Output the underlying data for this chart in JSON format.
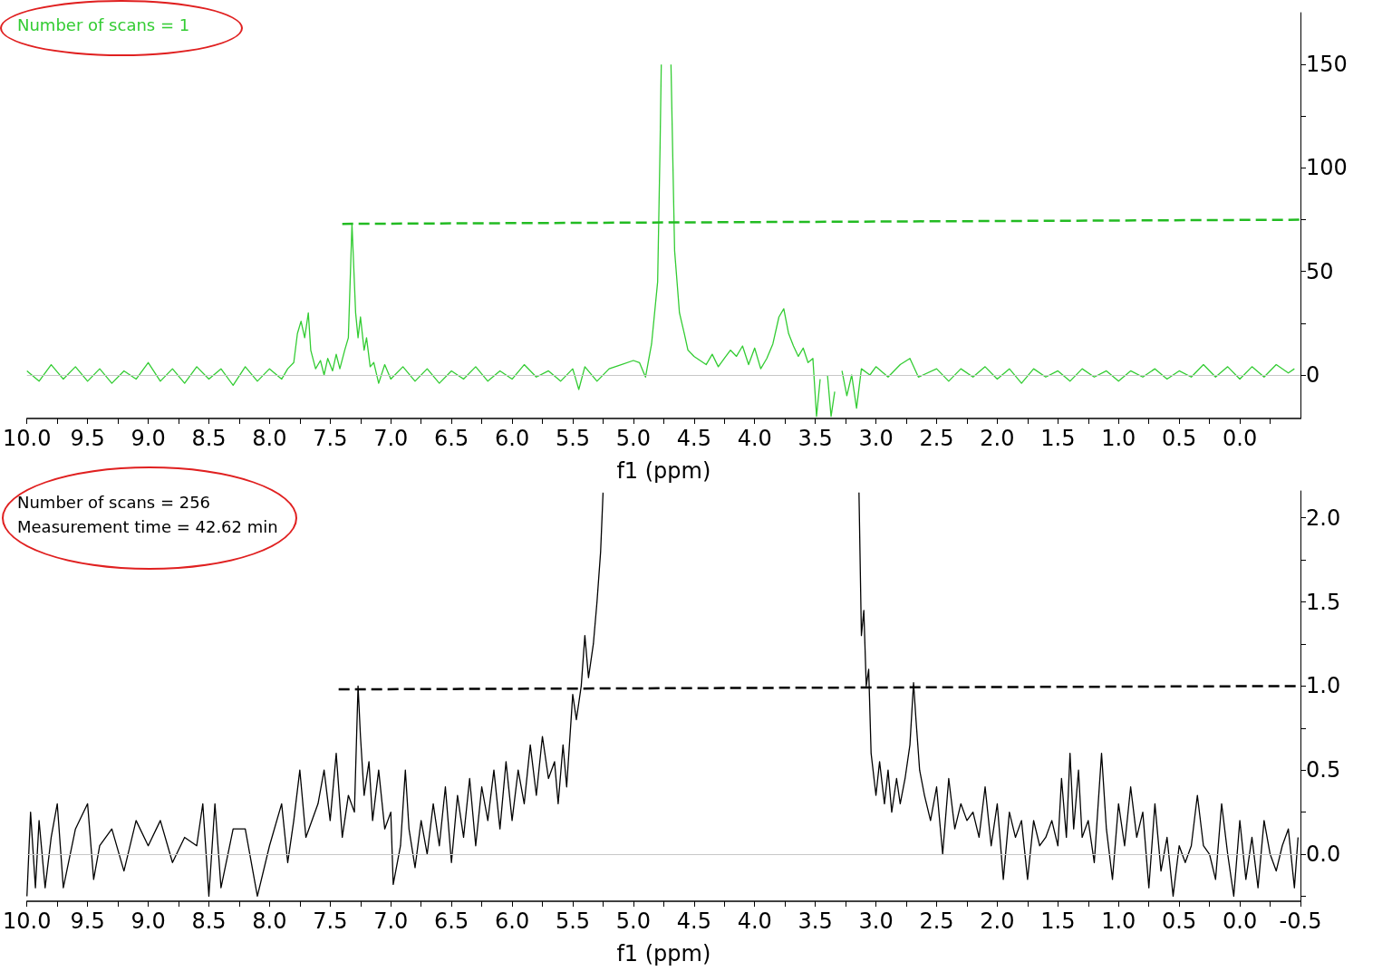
{
  "chart_data": [
    {
      "type": "line",
      "xlabel": "f1 (ppm)",
      "annotations": [
        "Number of scans = 1"
      ],
      "xlim": [
        10.0,
        -0.5
      ],
      "xticks": [
        {
          "value": 10,
          "label": "10.0"
        },
        {
          "value": 9.75,
          "label": null
        },
        {
          "value": 9.5,
          "label": "9.5"
        },
        {
          "value": 9.25,
          "label": null
        },
        {
          "value": 9,
          "label": "9.0"
        },
        {
          "value": 8.75,
          "label": null
        },
        {
          "value": 8.5,
          "label": "8.5"
        },
        {
          "value": 8.25,
          "label": null
        },
        {
          "value": 8,
          "label": "8.0"
        },
        {
          "value": 7.75,
          "label": null
        },
        {
          "value": 7.5,
          "label": "7.5"
        },
        {
          "value": 7.25,
          "label": null
        },
        {
          "value": 7,
          "label": "7.0"
        },
        {
          "value": 6.75,
          "label": null
        },
        {
          "value": 6.5,
          "label": "6.5"
        },
        {
          "value": 6.25,
          "label": null
        },
        {
          "value": 6,
          "label": "6.0"
        },
        {
          "value": 5.75,
          "label": null
        },
        {
          "value": 5.5,
          "label": "5.5"
        },
        {
          "value": 5.25,
          "label": null
        },
        {
          "value": 5,
          "label": "5.0"
        },
        {
          "value": 4.75,
          "label": null
        },
        {
          "value": 4.5,
          "label": "4.5"
        },
        {
          "value": 4.25,
          "label": null
        },
        {
          "value": 4,
          "label": "4.0"
        },
        {
          "value": 3.75,
          "label": null
        },
        {
          "value": 3.5,
          "label": "3.5"
        },
        {
          "value": 3.25,
          "label": null
        },
        {
          "value": 3,
          "label": "3.0"
        },
        {
          "value": 2.75,
          "label": null
        },
        {
          "value": 2.5,
          "label": "2.5"
        },
        {
          "value": 2.25,
          "label": null
        },
        {
          "value": 2,
          "label": "2.0"
        },
        {
          "value": 1.75,
          "label": null
        },
        {
          "value": 1.5,
          "label": "1.5"
        },
        {
          "value": 1.25,
          "label": null
        },
        {
          "value": 1,
          "label": "1.0"
        },
        {
          "value": 0.75,
          "label": null
        },
        {
          "value": 0.5,
          "label": "0.5"
        },
        {
          "value": 0.25,
          "label": null
        },
        {
          "value": 0,
          "label": "0.0"
        },
        {
          "value": -0.25,
          "label": null
        }
      ],
      "ylim": [
        -21,
        175
      ],
      "yticks": [
        0,
        {
          "value": 25,
          "label": null
        },
        50,
        {
          "value": 75,
          "label": null
        },
        100,
        {
          "value": 125,
          "label": null
        },
        150
      ],
      "ref_lines": [
        {
          "axis": "y",
          "value": 0,
          "color": "#c8c8c8"
        }
      ],
      "series": [
        {
          "color": "#33cc33",
          "x": [
            10.0,
            9.9,
            9.8,
            9.7,
            9.6,
            9.5,
            9.4,
            9.3,
            9.2,
            9.1,
            9.0,
            8.9,
            8.8,
            8.7,
            8.6,
            8.5,
            8.4,
            8.3,
            8.2,
            8.1,
            8.0,
            7.9,
            7.85,
            7.8,
            7.77,
            7.74,
            7.71,
            7.68,
            7.66,
            7.62,
            7.58,
            7.55,
            7.52,
            7.48,
            7.45,
            7.42,
            7.38,
            7.35,
            7.32,
            7.29,
            7.27,
            7.25,
            7.22,
            7.2,
            7.17,
            7.14,
            7.1,
            7.05,
            7.0,
            6.9,
            6.8,
            6.7,
            6.6,
            6.5,
            6.4,
            6.3,
            6.2,
            6.1,
            6.0,
            5.9,
            5.8,
            5.7,
            5.6,
            5.5,
            5.45,
            5.4,
            5.3,
            5.2,
            5.1,
            5.0,
            4.95,
            4.9,
            4.85,
            4.8,
            4.78,
            4.77,
            4.73,
            4.69,
            4.66,
            4.62,
            4.58,
            4.55,
            4.5,
            4.45,
            4.4,
            4.35,
            4.3,
            4.25,
            4.2,
            4.15,
            4.1,
            4.05,
            4.0,
            3.95,
            3.9,
            3.85,
            3.8,
            3.76,
            3.72,
            3.68,
            3.64,
            3.6,
            3.56,
            3.52,
            3.49,
            3.46,
            3.43,
            3.4,
            3.37,
            3.34,
            3.31,
            3.28,
            3.24,
            3.2,
            3.16,
            3.12,
            3.05,
            3.0,
            2.9,
            2.8,
            2.72,
            2.65,
            2.5,
            2.4,
            2.3,
            2.2,
            2.1,
            2.0,
            1.9,
            1.8,
            1.7,
            1.6,
            1.5,
            1.4,
            1.3,
            1.2,
            1.1,
            1.0,
            0.9,
            0.8,
            0.7,
            0.6,
            0.5,
            0.4,
            0.3,
            0.2,
            0.1,
            0.0,
            -0.1,
            -0.2,
            -0.3,
            -0.4,
            -0.45
          ],
          "values": [
            2,
            -3,
            5,
            -2,
            4,
            -3,
            3,
            -4,
            2,
            -2,
            6,
            -3,
            3,
            -4,
            4,
            -2,
            3,
            -5,
            4,
            -3,
            3,
            -2,
            3,
            6,
            20,
            26,
            18,
            30,
            12,
            3,
            7,
            0,
            8,
            2,
            10,
            3,
            12,
            18,
            73,
            30,
            18,
            28,
            12,
            18,
            4,
            6,
            -4,
            5,
            -2,
            4,
            -3,
            3,
            -4,
            2,
            -2,
            4,
            -3,
            2,
            -2,
            5,
            -1,
            2,
            -3,
            3,
            -7,
            4,
            -3,
            3,
            5,
            7,
            6,
            -1,
            15,
            45,
            110,
            150,
            null,
            150,
            60,
            30,
            20,
            12,
            9,
            7,
            5,
            10,
            4,
            8,
            12,
            9,
            14,
            5,
            13,
            3,
            8,
            15,
            28,
            32,
            20,
            14,
            9,
            13,
            6,
            8,
            -20,
            -2,
            null,
            0,
            -20,
            -8,
            null,
            2,
            -10,
            0,
            -16,
            3,
            0,
            4,
            -1,
            5,
            8,
            -1,
            3,
            -3,
            3,
            -1,
            4,
            -2,
            3,
            -4,
            3,
            -1,
            2,
            -3,
            3,
            -1,
            2,
            -3,
            2,
            -1,
            3,
            -2,
            2,
            -1,
            5,
            -1,
            4,
            -2,
            4,
            -1,
            5,
            1,
            3
          ]
        },
        {
          "color": "#22bb22",
          "line_style": "dashed",
          "x": [
            7.4,
            -0.5
          ],
          "values": [
            73,
            75
          ]
        }
      ]
    },
    {
      "type": "line",
      "xlabel": "f1 (ppm)",
      "annotations": [
        "Number of scans = 256",
        "Measurement time = 42.62 min"
      ],
      "xlim": [
        10.0,
        -0.5
      ],
      "xticks": [
        {
          "value": 10,
          "label": "10.0"
        },
        {
          "value": 9.75,
          "label": null
        },
        {
          "value": 9.5,
          "label": "9.5"
        },
        {
          "value": 9.25,
          "label": null
        },
        {
          "value": 9,
          "label": "9.0"
        },
        {
          "value": 8.75,
          "label": null
        },
        {
          "value": 8.5,
          "label": "8.5"
        },
        {
          "value": 8.25,
          "label": null
        },
        {
          "value": 8,
          "label": "8.0"
        },
        {
          "value": 7.75,
          "label": null
        },
        {
          "value": 7.5,
          "label": "7.5"
        },
        {
          "value": 7.25,
          "label": null
        },
        {
          "value": 7,
          "label": "7.0"
        },
        {
          "value": 6.75,
          "label": null
        },
        {
          "value": 6.5,
          "label": "6.5"
        },
        {
          "value": 6.25,
          "label": null
        },
        {
          "value": 6,
          "label": "6.0"
        },
        {
          "value": 5.75,
          "label": null
        },
        {
          "value": 5.5,
          "label": "5.5"
        },
        {
          "value": 5.25,
          "label": null
        },
        {
          "value": 5,
          "label": "5.0"
        },
        {
          "value": 4.75,
          "label": null
        },
        {
          "value": 4.5,
          "label": "4.5"
        },
        {
          "value": 4.25,
          "label": null
        },
        {
          "value": 4,
          "label": "4.0"
        },
        {
          "value": 3.75,
          "label": null
        },
        {
          "value": 3.5,
          "label": "3.5"
        },
        {
          "value": 3.25,
          "label": null
        },
        {
          "value": 3,
          "label": "3.0"
        },
        {
          "value": 2.75,
          "label": null
        },
        {
          "value": 2.5,
          "label": "2.5"
        },
        {
          "value": 2.25,
          "label": null
        },
        {
          "value": 2,
          "label": "2.0"
        },
        {
          "value": 1.75,
          "label": null
        },
        {
          "value": 1.5,
          "label": "1.5"
        },
        {
          "value": 1.25,
          "label": null
        },
        {
          "value": 1,
          "label": "1.0"
        },
        {
          "value": 0.75,
          "label": null
        },
        {
          "value": 0.5,
          "label": "0.5"
        },
        {
          "value": 0.25,
          "label": null
        },
        {
          "value": 0,
          "label": "0.0"
        },
        {
          "value": -0.25,
          "label": null
        },
        {
          "value": -0.5,
          "label": "-0.5"
        }
      ],
      "ylim": [
        -0.28,
        2.16
      ],
      "yticks": [
        {
          "value": -0.25,
          "label": null
        },
        {
          "value": 0,
          "label": "0.0"
        },
        {
          "value": 0.25,
          "label": null
        },
        {
          "value": 0.5,
          "label": "0.5"
        },
        {
          "value": 0.75,
          "label": null
        },
        {
          "value": 1,
          "label": "1.0"
        },
        {
          "value": 1.25,
          "label": null
        },
        {
          "value": 1.5,
          "label": "1.5"
        },
        {
          "value": 1.75,
          "label": null
        },
        {
          "value": 2,
          "label": "2.0"
        }
      ],
      "ref_lines": [
        {
          "axis": "y",
          "value": 0,
          "color": "#c8c8c8"
        }
      ],
      "series": [
        {
          "color": "#000000",
          "x": [
            10.0,
            9.97,
            9.93,
            9.9,
            9.85,
            9.8,
            9.75,
            9.7,
            9.6,
            9.5,
            9.45,
            9.4,
            9.3,
            9.2,
            9.1,
            9.0,
            8.9,
            8.8,
            8.7,
            8.6,
            8.55,
            8.5,
            8.45,
            8.4,
            8.3,
            8.2,
            8.1,
            8.0,
            7.9,
            7.85,
            7.8,
            7.75,
            7.7,
            7.6,
            7.55,
            7.5,
            7.45,
            7.4,
            7.35,
            7.3,
            7.27,
            7.25,
            7.22,
            7.18,
            7.15,
            7.1,
            7.05,
            7.0,
            6.98,
            6.92,
            6.88,
            6.85,
            6.8,
            6.75,
            6.7,
            6.65,
            6.6,
            6.55,
            6.5,
            6.45,
            6.4,
            6.35,
            6.3,
            6.25,
            6.2,
            6.15,
            6.1,
            6.05,
            6.0,
            5.95,
            5.9,
            5.85,
            5.8,
            5.75,
            5.7,
            5.65,
            5.62,
            5.58,
            5.55,
            5.5,
            5.47,
            5.43,
            5.4,
            5.37,
            5.33,
            5.3,
            5.27,
            5.25,
            4.2,
            3.14,
            3.12,
            3.1,
            3.08,
            3.06,
            3.04,
            3.0,
            2.97,
            2.93,
            2.9,
            2.87,
            2.83,
            2.8,
            2.76,
            2.72,
            2.69,
            2.67,
            2.64,
            2.6,
            2.55,
            2.5,
            2.45,
            2.4,
            2.35,
            2.3,
            2.25,
            2.2,
            2.15,
            2.1,
            2.05,
            2.0,
            1.95,
            1.9,
            1.85,
            1.8,
            1.75,
            1.7,
            1.65,
            1.6,
            1.55,
            1.5,
            1.47,
            1.43,
            1.4,
            1.37,
            1.33,
            1.3,
            1.25,
            1.2,
            1.14,
            1.1,
            1.05,
            1.0,
            0.95,
            0.9,
            0.85,
            0.8,
            0.75,
            0.7,
            0.65,
            0.6,
            0.55,
            0.5,
            0.45,
            0.4,
            0.35,
            0.3,
            0.25,
            0.2,
            0.15,
            0.1,
            0.05,
            0.0,
            -0.05,
            -0.1,
            -0.15,
            -0.2,
            -0.25,
            -0.3,
            -0.35,
            -0.4,
            -0.45,
            -0.48
          ],
          "values": [
            -0.25,
            0.25,
            -0.2,
            0.2,
            -0.2,
            0.1,
            0.3,
            -0.2,
            0.15,
            0.3,
            -0.15,
            0.05,
            0.15,
            -0.1,
            0.2,
            0.05,
            0.2,
            -0.05,
            0.1,
            0.05,
            0.3,
            -0.25,
            0.3,
            -0.2,
            0.15,
            0.15,
            -0.25,
            0.05,
            0.3,
            -0.05,
            0.2,
            0.5,
            0.1,
            0.3,
            0.5,
            0.2,
            0.6,
            0.1,
            0.35,
            0.25,
            1.0,
            0.7,
            0.35,
            0.55,
            0.2,
            0.5,
            0.15,
            0.25,
            -0.18,
            0.05,
            0.5,
            0.15,
            -0.08,
            0.2,
            0.0,
            0.3,
            0.05,
            0.4,
            -0.05,
            0.35,
            0.1,
            0.45,
            0.05,
            0.4,
            0.2,
            0.5,
            0.15,
            0.55,
            0.2,
            0.5,
            0.3,
            0.65,
            0.35,
            0.7,
            0.45,
            0.55,
            0.3,
            0.65,
            0.4,
            0.95,
            0.8,
            1.0,
            1.3,
            1.05,
            1.25,
            1.5,
            1.8,
            2.15,
            null,
            2.15,
            1.3,
            1.45,
            1.0,
            1.1,
            0.6,
            0.35,
            0.55,
            0.3,
            0.5,
            0.25,
            0.45,
            0.3,
            0.45,
            0.65,
            1.02,
            0.8,
            0.5,
            0.35,
            0.2,
            0.4,
            0.0,
            0.45,
            0.15,
            0.3,
            0.2,
            0.25,
            0.1,
            0.4,
            0.05,
            0.3,
            -0.15,
            0.25,
            0.1,
            0.2,
            -0.15,
            0.2,
            0.05,
            0.1,
            0.2,
            0.05,
            0.45,
            0.1,
            0.6,
            0.15,
            0.5,
            0.1,
            0.2,
            -0.05,
            0.6,
            0.15,
            -0.15,
            0.3,
            0.05,
            0.4,
            0.1,
            0.25,
            -0.2,
            0.3,
            -0.1,
            0.1,
            -0.25,
            0.05,
            -0.05,
            0.05,
            0.35,
            0.05,
            0.0,
            -0.15,
            0.3,
            0.0,
            -0.25,
            0.2,
            -0.15,
            0.1,
            -0.2,
            0.2,
            0.0,
            -0.1,
            0.05,
            0.15,
            -0.2,
            0.1
          ]
        },
        {
          "color": "#000000",
          "line_style": "dashed",
          "x": [
            7.43,
            -0.5
          ],
          "values": [
            0.98,
            1.0
          ]
        }
      ]
    }
  ]
}
